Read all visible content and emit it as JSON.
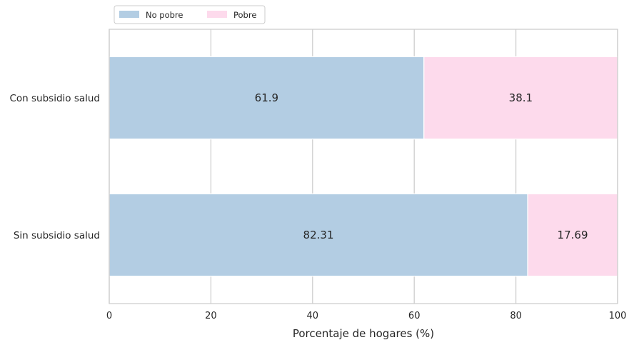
{
  "chart_data": {
    "type": "bar",
    "orientation": "horizontal",
    "stacked": true,
    "categories": [
      "Con subsidio salud",
      "Sin subsidio salud"
    ],
    "series": [
      {
        "name": "No pobre",
        "values": [
          61.9,
          82.31
        ],
        "color": "#b3cde3"
      },
      {
        "name": "Pobre",
        "values": [
          38.1,
          17.69
        ],
        "color": "#fddaec"
      }
    ],
    "data_labels": [
      [
        "61.9",
        "38.1"
      ],
      [
        "82.31",
        "17.69"
      ]
    ],
    "xlabel": "Porcentaje de hogares (%)",
    "ylabel": "",
    "title": "",
    "xlim": [
      0,
      100
    ],
    "xticks": [
      0,
      20,
      40,
      60,
      80,
      100
    ],
    "grid": "vertical",
    "legend": "top-left, outside"
  }
}
